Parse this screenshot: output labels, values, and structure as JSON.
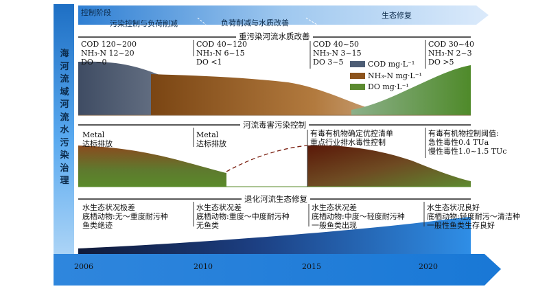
{
  "sidebar_title": "海河流域河流水污染治理",
  "stage_bar": {
    "label": "控制阶段",
    "stages": [
      "污染控制与负荷削减",
      "负荷削减与水质改善",
      "生态修复"
    ]
  },
  "panel1": {
    "title": "重污染河流水质改善",
    "annotations": [
      {
        "line1": "COD 120~200",
        "line2": "NH₃-N 12~20",
        "line3": "DO ~0"
      },
      {
        "line1": "COD 40~120",
        "line2": "NH₃-N 6~15",
        "line3": "DO <1"
      },
      {
        "line1": "COD 40~50",
        "line2": "NH₃-N 3~15",
        "line3": "DO 3~5"
      },
      {
        "line1": "COD 30~40",
        "line2": "NH₃-N 2~3",
        "line3": "DO >5"
      }
    ],
    "legend": [
      "COD mg·L⁻¹",
      "NH₃-N mg·L⁻¹",
      "DO mg·L⁻¹"
    ]
  },
  "panel2": {
    "title": "河流毒害污染控制",
    "annotations": [
      {
        "line1": "Metal",
        "line2": "达标排放"
      },
      {
        "line1": "Metal",
        "line2": "达标排放"
      },
      {
        "line1": "有毒有机物确定优控清单",
        "line2": "重点行业排水毒性控制"
      },
      {
        "line1": "有毒有机物控制阈值:",
        "line2": "急性毒性0.4 TUa",
        "line3": "慢性毒性1.0~1.5 TUc"
      }
    ]
  },
  "panel3": {
    "title": "退化河流生态修复",
    "annotations": [
      {
        "line1": "水生态状况极差",
        "line2": "底栖动物:无～重度耐污种",
        "line3": "鱼类绝迹"
      },
      {
        "line1": "水生态状况差",
        "line2": "底栖动物:重度～中度耐污种",
        "line3": "无鱼类"
      },
      {
        "line1": "水生态状况差",
        "line2": "底栖动物:中度～轻度耐污种",
        "line3": "一般鱼类出现"
      },
      {
        "line1": "水生态状况良好",
        "line2": "底栖动物:轻度耐污～清洁种",
        "line3": "一般性鱼类生存良好"
      }
    ]
  },
  "timeline": {
    "years": [
      "2006",
      "2010",
      "2015",
      "2020"
    ]
  },
  "colors": {
    "cod": "#4d5d75",
    "nh3n": "#8c531c",
    "do": "#5b8a2f",
    "blue_dark": "#0f4c8c",
    "blue_light": "#4a9ee8"
  }
}
